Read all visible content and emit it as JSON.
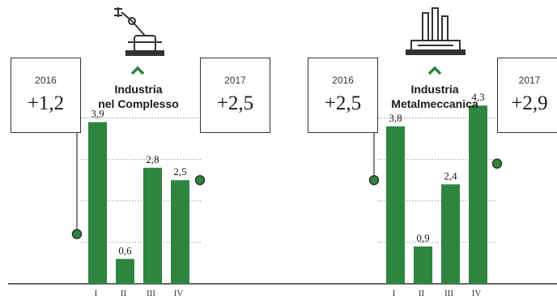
{
  "colors": {
    "bar": "#2e8540",
    "accent": "#2e8540",
    "line": "#333333",
    "grid": "#999999"
  },
  "icons": [
    "robot-arm-icon",
    "factory-icon"
  ],
  "chart_data": [
    {
      "type": "bar",
      "title": "Industria nel Complesso",
      "title_lines": [
        "Industria",
        "nel Complesso"
      ],
      "categories": [
        "I",
        "II",
        "III",
        "IV"
      ],
      "values": [
        3.9,
        0.6,
        2.8,
        2.5
      ],
      "value_labels": [
        "3,9",
        "0,6",
        "2,8",
        "2,5"
      ],
      "ylim": [
        0,
        4.5
      ],
      "grid": true,
      "icon": "robot-arm-icon",
      "annotations": [
        {
          "year": "2016",
          "value": 1.2,
          "label": "+1,2"
        },
        {
          "year": "2017",
          "value": 2.5,
          "label": "+2,5"
        }
      ]
    },
    {
      "type": "bar",
      "title": "Industria Metalmeccanica",
      "title_lines": [
        "Industria",
        "Metalmeccanica"
      ],
      "categories": [
        "I",
        "II",
        "III",
        "IV"
      ],
      "values": [
        3.8,
        0.9,
        2.4,
        4.3
      ],
      "value_labels": [
        "3,8",
        "0,9",
        "2,4",
        "4,3"
      ],
      "ylim": [
        0,
        4.5
      ],
      "grid": true,
      "icon": "factory-icon",
      "annotations": [
        {
          "year": "2016",
          "value": 2.5,
          "label": "+2,5"
        },
        {
          "year": "2017",
          "value": 2.9,
          "label": "+2,9"
        }
      ]
    }
  ]
}
